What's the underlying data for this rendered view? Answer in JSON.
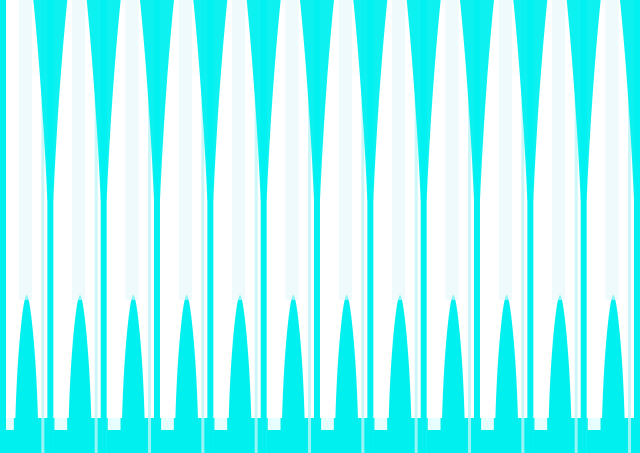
{
  "pattern": {
    "kind": "repeating-vertical-waves",
    "columns": 12,
    "colors": {
      "background": "#ffffff",
      "primary": "#00f0f0",
      "stripe_light": "#bff5f7",
      "stripe_pale": "#e4f7fb"
    }
  }
}
